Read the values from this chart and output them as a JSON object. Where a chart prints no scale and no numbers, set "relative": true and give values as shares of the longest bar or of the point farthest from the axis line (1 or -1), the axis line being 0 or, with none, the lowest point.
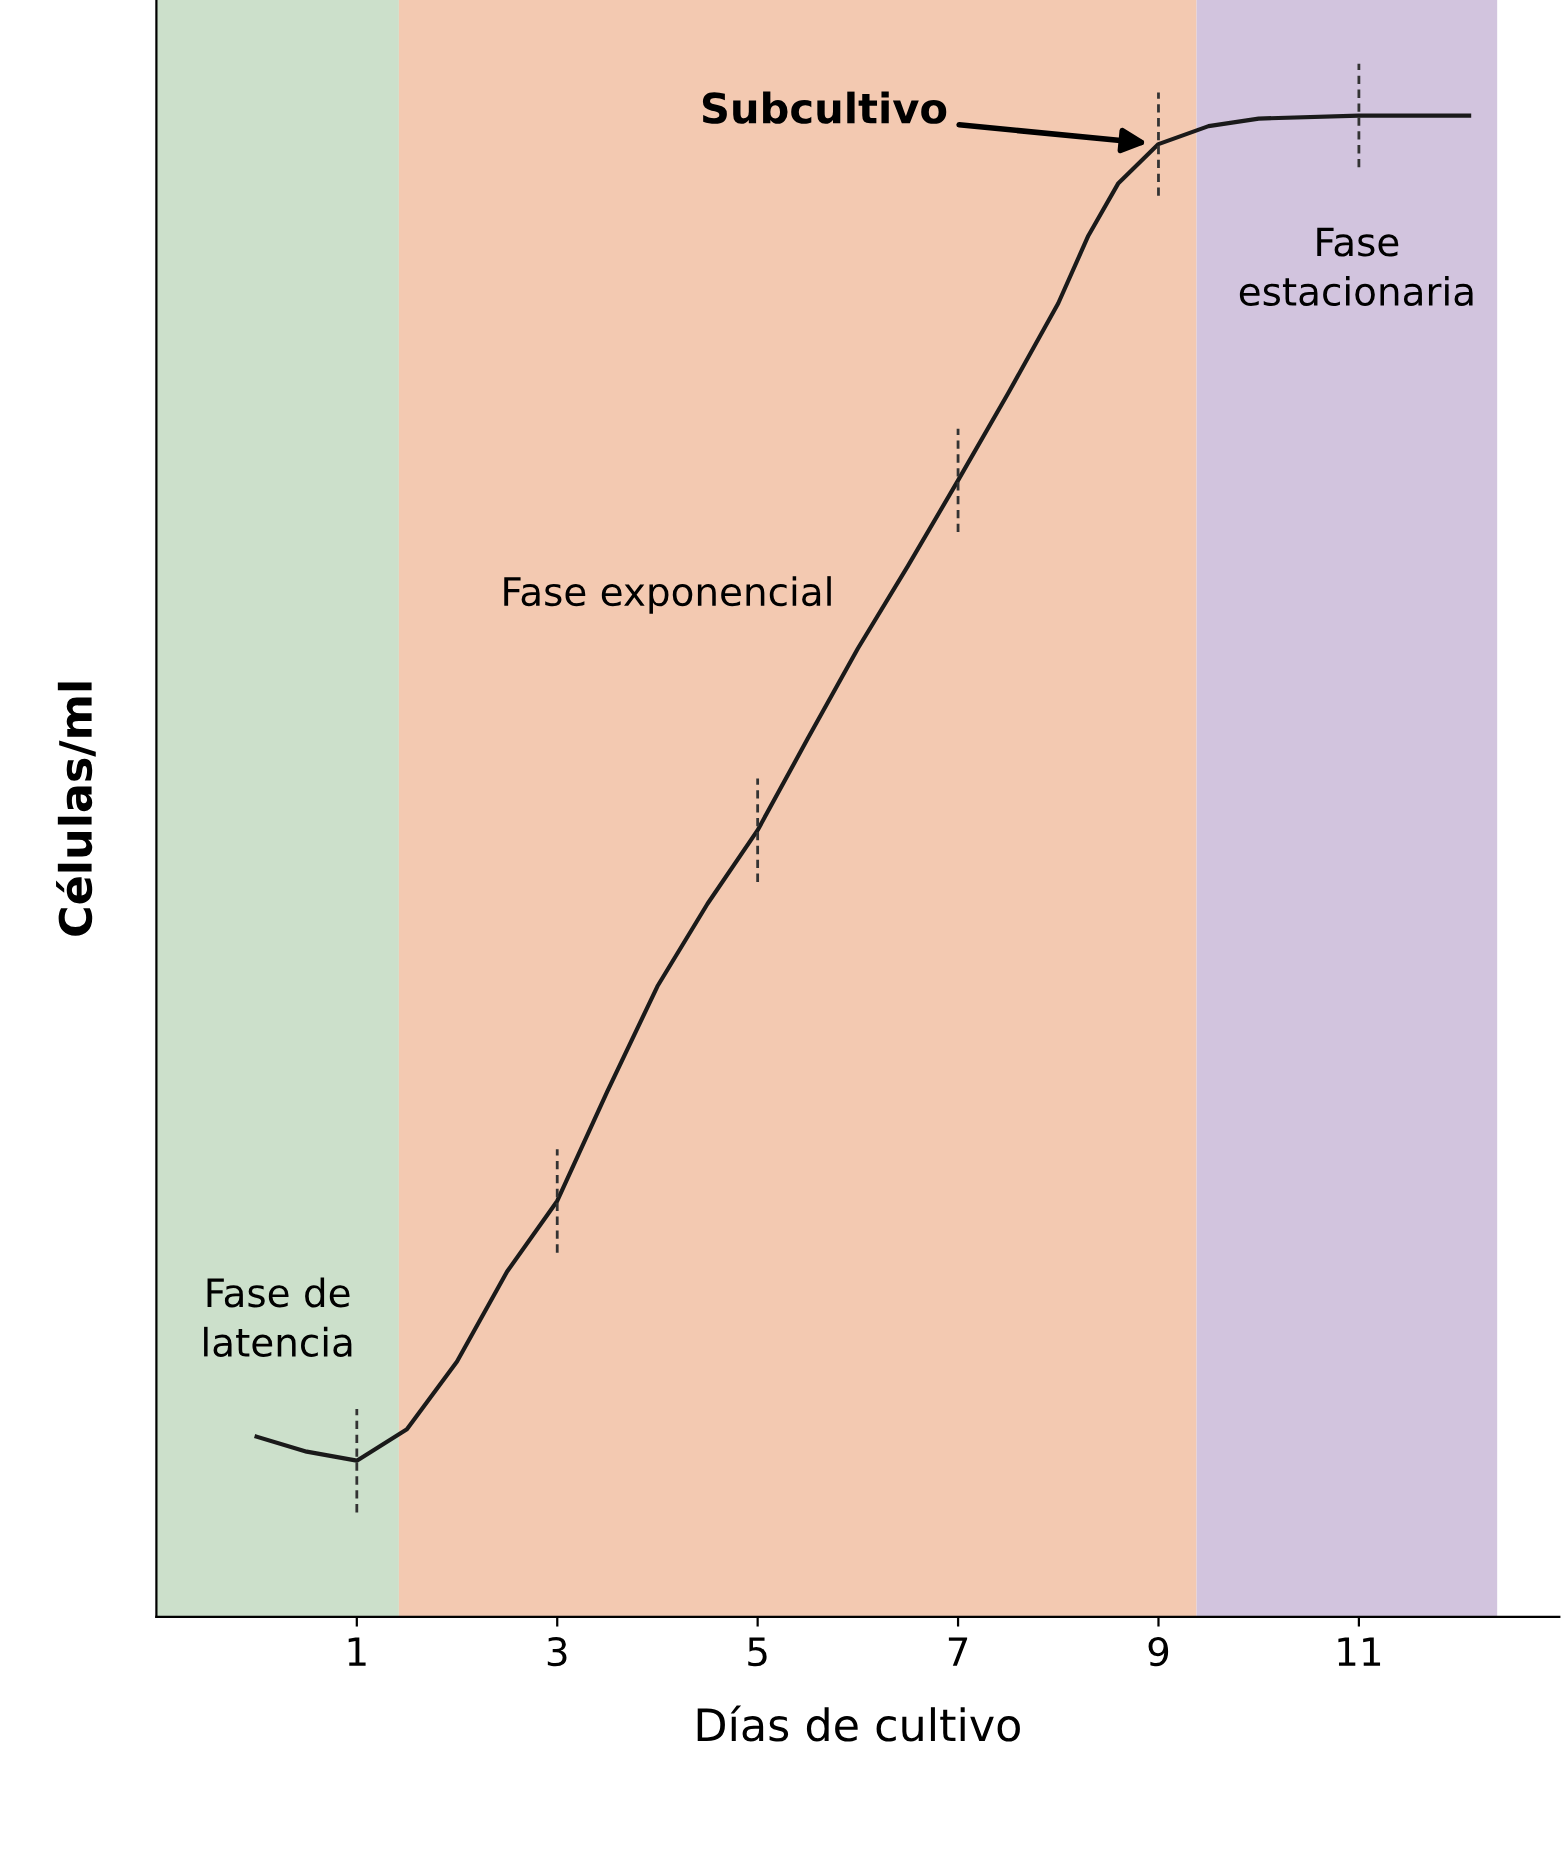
{
  "chart_data": {
    "type": "line",
    "relative": true,
    "xlabel": "Días de cultivo",
    "ylabel": "Células/ml",
    "xlim": [
      -1,
      13
    ],
    "xticks": [
      1,
      3,
      5,
      7,
      9,
      11
    ],
    "series": [
      {
        "color": "#1a1a1a",
        "x": [
          0,
          0.5,
          1,
          1.5,
          2,
          2.5,
          3,
          3.5,
          4,
          4.5,
          5,
          5.5,
          6,
          6.5,
          7,
          7.5,
          8,
          8.3,
          8.6,
          9,
          9.5,
          10,
          11,
          12.1
        ],
        "values": [
          0.12,
          0.11,
          0.104,
          0.125,
          0.17,
          0.23,
          0.277,
          0.35,
          0.42,
          0.475,
          0.524,
          0.585,
          0.645,
          0.7,
          0.757,
          0.815,
          0.875,
          0.92,
          0.955,
          0.981,
          0.993,
          0.998,
          1,
          1
        ]
      }
    ],
    "bands": [
      {
        "axis": "x",
        "from": -1,
        "to": 1.42,
        "label": "Fase de\nlatencia",
        "color": "#cce0cb"
      },
      {
        "axis": "x",
        "from": 1.42,
        "to": 9.38,
        "label": "Fase exponencial",
        "color": "#f3c9b1"
      },
      {
        "axis": "x",
        "from": 9.38,
        "to": 12.38,
        "label": "Fase\nestacionaria",
        "color": "#d2c4de"
      }
    ],
    "annotations": [
      {
        "text": "Subcultivo",
        "x": 9,
        "y": 0.981
      }
    ]
  }
}
